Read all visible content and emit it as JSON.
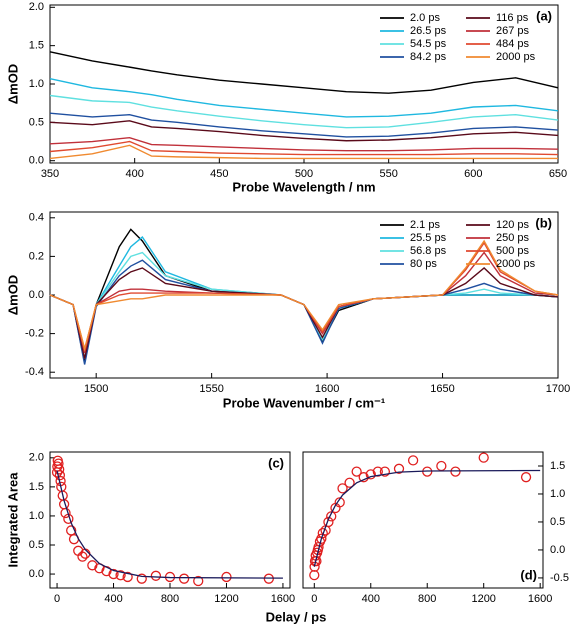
{
  "chart_data": [
    {
      "type": "line",
      "label": "(a)",
      "xlabel": "Probe Wavelength / nm",
      "ylabel": "ΔmOD",
      "legend": "upper right",
      "xlim": [
        350,
        650
      ],
      "xticks": [
        350,
        400,
        450,
        500,
        550,
        600,
        650
      ],
      "ylim": [
        -0.03,
        2.03
      ],
      "yticks": [
        {
          "value": 0,
          "label": "0.0"
        },
        0.5,
        {
          "value": 1,
          "label": "1.0"
        },
        1.5,
        {
          "value": 2,
          "label": "2.0"
        }
      ],
      "x": [
        350,
        375,
        397,
        410,
        425,
        450,
        475,
        500,
        525,
        550,
        575,
        600,
        625,
        650
      ],
      "series": [
        {
          "name": "2.0 ps",
          "color": "#000000",
          "values": [
            1.42,
            1.3,
            1.22,
            1.17,
            1.12,
            1.05,
            1.0,
            0.95,
            0.9,
            0.88,
            0.92,
            1.02,
            1.08,
            0.95
          ]
        },
        {
          "name": "26.5 ps",
          "color": "#1fb8e0",
          "values": [
            1.07,
            0.95,
            0.9,
            0.86,
            0.8,
            0.72,
            0.67,
            0.62,
            0.57,
            0.58,
            0.62,
            0.7,
            0.72,
            0.65
          ]
        },
        {
          "name": "54.5 ps",
          "color": "#5fe0e0",
          "values": [
            0.85,
            0.78,
            0.76,
            0.7,
            0.65,
            0.58,
            0.52,
            0.47,
            0.43,
            0.44,
            0.5,
            0.57,
            0.6,
            0.53
          ]
        },
        {
          "name": "84.2 ps",
          "color": "#2050a0",
          "values": [
            0.62,
            0.57,
            0.6,
            0.53,
            0.5,
            0.44,
            0.39,
            0.35,
            0.31,
            0.32,
            0.36,
            0.42,
            0.44,
            0.4
          ]
        },
        {
          "name": "116 ps",
          "color": "#5a0a1a",
          "values": [
            0.5,
            0.47,
            0.52,
            0.44,
            0.42,
            0.38,
            0.33,
            0.29,
            0.26,
            0.27,
            0.3,
            0.35,
            0.37,
            0.33
          ]
        },
        {
          "name": "267 ps",
          "color": "#c0303a",
          "values": [
            0.22,
            0.25,
            0.3,
            0.21,
            0.2,
            0.18,
            0.16,
            0.14,
            0.13,
            0.13,
            0.14,
            0.16,
            0.16,
            0.15
          ]
        },
        {
          "name": "484 ps",
          "color": "#e04a30",
          "values": [
            0.12,
            0.17,
            0.25,
            0.13,
            0.12,
            0.1,
            0.09,
            0.08,
            0.08,
            0.08,
            0.08,
            0.09,
            0.09,
            0.08
          ]
        },
        {
          "name": "2000 ps",
          "color": "#f08a30",
          "values": [
            0.03,
            0.09,
            0.2,
            0.06,
            0.05,
            0.04,
            0.03,
            0.03,
            0.03,
            0.03,
            0.03,
            0.03,
            0.03,
            0.03
          ]
        }
      ]
    },
    {
      "type": "line",
      "label": "(b)",
      "xlabel": "Probe Wavenumber / cm⁻¹",
      "ylabel": "ΔmOD",
      "legend": "upper right",
      "xlim": [
        1480,
        1700
      ],
      "xticks": [
        1500,
        1550,
        1600,
        1650,
        1700
      ],
      "ylim": [
        -0.43,
        0.43
      ],
      "yticks": [
        -0.4,
        -0.2,
        {
          "value": 0,
          "label": "0.0"
        },
        0.2,
        0.4
      ],
      "x": [
        1480,
        1490,
        1495,
        1500,
        1510,
        1515,
        1520,
        1530,
        1550,
        1580,
        1590,
        1598,
        1605,
        1620,
        1650,
        1660,
        1668,
        1675,
        1690,
        1700
      ],
      "series": [
        {
          "name": "2.1 ps",
          "color": "#000000",
          "values": [
            0,
            -0.05,
            -0.35,
            -0.05,
            0.25,
            0.34,
            0.28,
            0.1,
            0.02,
            0,
            -0.05,
            -0.24,
            -0.08,
            -0.02,
            0,
            0,
            0,
            0,
            0,
            -0.01
          ]
        },
        {
          "name": "25.5 ps",
          "color": "#1fb8e0",
          "values": [
            0,
            -0.05,
            -0.33,
            -0.05,
            0.15,
            0.25,
            0.3,
            0.12,
            0.03,
            0,
            -0.05,
            -0.23,
            -0.07,
            -0.02,
            0,
            0,
            0,
            0,
            0,
            -0.01
          ]
        },
        {
          "name": "56.8 ps",
          "color": "#5fe0e0",
          "values": [
            0,
            -0.05,
            -0.33,
            -0.05,
            0.12,
            0.2,
            0.22,
            0.1,
            0.03,
            0,
            -0.05,
            -0.23,
            -0.07,
            -0.02,
            0,
            0.01,
            0.03,
            0.01,
            0,
            -0.01
          ]
        },
        {
          "name": "80 ps",
          "color": "#2050a0",
          "values": [
            0,
            -0.05,
            -0.36,
            -0.06,
            0.1,
            0.15,
            0.18,
            0.08,
            0.02,
            0,
            -0.05,
            -0.25,
            -0.07,
            -0.02,
            0,
            0.03,
            0.06,
            0.03,
            0,
            -0.01
          ]
        },
        {
          "name": "120 ps",
          "color": "#5a0a1a",
          "values": [
            0,
            -0.05,
            -0.33,
            -0.05,
            0.08,
            0.12,
            0.14,
            0.06,
            0.02,
            0,
            -0.05,
            -0.22,
            -0.06,
            -0.02,
            0,
            0.06,
            0.14,
            0.06,
            0,
            -0.01
          ]
        },
        {
          "name": "250 ps",
          "color": "#c0303a",
          "values": [
            0,
            -0.05,
            -0.3,
            -0.05,
            0.02,
            0.03,
            0.03,
            0.02,
            0.01,
            0,
            -0.05,
            -0.2,
            -0.06,
            -0.02,
            0,
            0.1,
            0.22,
            0.1,
            0.01,
            0
          ]
        },
        {
          "name": "500 ps",
          "color": "#e04a30",
          "values": [
            0,
            -0.05,
            -0.28,
            -0.05,
            0,
            0.01,
            0.01,
            0.01,
            0.01,
            0,
            -0.05,
            -0.19,
            -0.06,
            -0.02,
            0,
            0.13,
            0.27,
            0.12,
            0.02,
            0
          ]
        },
        {
          "name": "2000 ps",
          "color": "#f08a30",
          "values": [
            0,
            -0.05,
            -0.28,
            -0.05,
            -0.03,
            -0.02,
            -0.02,
            0,
            0,
            0,
            -0.05,
            -0.18,
            -0.05,
            -0.02,
            0,
            0.14,
            0.28,
            0.13,
            0.02,
            0
          ]
        }
      ]
    },
    {
      "type": "scatter",
      "label": "(c)",
      "xlabel": "Delay / ps",
      "ylabel": "Integrated Area",
      "xlim": [
        -50,
        1650
      ],
      "xticks": [
        0,
        400,
        800,
        1200,
        1600
      ],
      "ylim": [
        -0.24,
        2.1
      ],
      "yticks": [
        {
          "value": 0,
          "label": "0.0"
        },
        0.5,
        {
          "value": 1,
          "label": "1.0"
        },
        1.5,
        {
          "value": 2,
          "label": "2.0"
        }
      ],
      "series": [
        {
          "style": "marker",
          "color": "#e02020",
          "x": [
            0,
            2,
            5,
            10,
            15,
            20,
            25,
            30,
            40,
            50,
            60,
            80,
            100,
            120,
            150,
            180,
            200,
            250,
            300,
            350,
            400,
            450,
            500,
            600,
            700,
            800,
            900,
            1000,
            1200,
            1500
          ],
          "values": [
            1.75,
            1.85,
            1.95,
            1.9,
            1.8,
            1.7,
            1.6,
            1.5,
            1.35,
            1.2,
            1.05,
            0.95,
            0.75,
            0.6,
            0.4,
            0.3,
            0.35,
            0.15,
            0.1,
            0.05,
            0,
            -0.02,
            -0.05,
            -0.08,
            -0.03,
            -0.05,
            -0.08,
            -0.12,
            -0.05,
            -0.08
          ]
        },
        {
          "style": "line",
          "color": "#1a1a5a",
          "x": [
            0,
            50,
            100,
            150,
            200,
            300,
            400,
            600,
            800,
            1600
          ],
          "values": [
            1.78,
            1.26,
            0.88,
            0.61,
            0.42,
            0.18,
            0.06,
            -0.04,
            -0.06,
            -0.07
          ]
        }
      ]
    },
    {
      "type": "scatter",
      "label": "(d)",
      "xlim": [
        -80,
        1620
      ],
      "xticks": [
        0,
        400,
        800,
        1200,
        1600
      ],
      "y2lim": [
        -0.68,
        1.75
      ],
      "y2ticks": [
        -0.5,
        {
          "value": 0,
          "label": "0.0"
        },
        0.5,
        {
          "value": 1,
          "label": "1.0"
        },
        1.5
      ],
      "series": [
        {
          "style": "marker",
          "color": "#e02020",
          "axis": "y2",
          "x": [
            0,
            2,
            5,
            10,
            15,
            20,
            25,
            30,
            40,
            50,
            60,
            80,
            100,
            120,
            150,
            180,
            200,
            250,
            300,
            350,
            400,
            450,
            500,
            600,
            700,
            800,
            900,
            1000,
            1200,
            1500
          ],
          "values": [
            -0.45,
            -0.3,
            -0.2,
            -0.1,
            -0.2,
            -0.05,
            0,
            0.05,
            0.15,
            0.2,
            0.3,
            0.35,
            0.5,
            0.6,
            0.75,
            0.85,
            1.1,
            1.2,
            1.4,
            1.3,
            1.35,
            1.4,
            1.4,
            1.45,
            1.6,
            1.4,
            1.5,
            1.4,
            1.65,
            1.3
          ]
        },
        {
          "style": "line",
          "color": "#1a1a5a",
          "axis": "y2",
          "x": [
            0,
            50,
            100,
            150,
            200,
            300,
            400,
            600,
            800,
            1600
          ],
          "values": [
            -0.3,
            0.2,
            0.55,
            0.8,
            0.98,
            1.2,
            1.31,
            1.39,
            1.41,
            1.42
          ]
        }
      ]
    }
  ]
}
